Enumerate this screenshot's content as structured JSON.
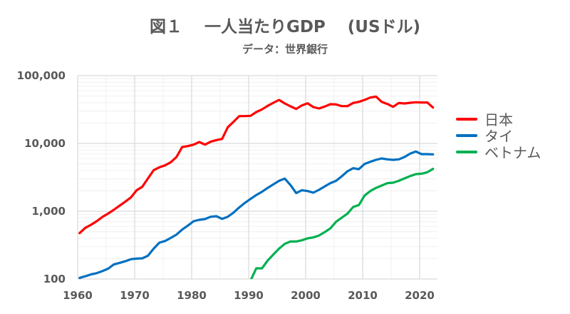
{
  "chart_data": {
    "type": "line",
    "title": "図１　 一人当たりGDP　 (USドル)",
    "subtitle": "データ：世界銀行",
    "xlabel": "",
    "ylabel": "",
    "y_scale": "log",
    "ylim": [
      100,
      100000
    ],
    "xlim": [
      1960,
      2022
    ],
    "grid": true,
    "legend_position": "right",
    "x_ticks": [
      1960,
      1970,
      1980,
      1990,
      2000,
      2010,
      2020
    ],
    "y_ticks": [
      {
        "v": 100,
        "label": "100"
      },
      {
        "v": 1000,
        "label": "1,000"
      },
      {
        "v": 10000,
        "label": "10,000"
      },
      {
        "v": 100000,
        "label": "100,000"
      }
    ],
    "series": [
      {
        "name": "日本",
        "color": "#ff0000",
        "start_year": 1960,
        "values": [
          475,
          568,
          631,
          712,
          824,
          923,
          1050,
          1204,
          1381,
          1598,
          2037,
          2296,
          3048,
          4043,
          4456,
          4754,
          5280,
          6310,
          8858,
          9145,
          9600,
          10490,
          9600,
          10590,
          11200,
          11660,
          17330,
          20860,
          25320,
          25320,
          25530,
          29060,
          31760,
          35840,
          39800,
          43850,
          38820,
          35240,
          32250,
          36420,
          39170,
          34440,
          32800,
          35000,
          37940,
          37580,
          35540,
          35540,
          39480,
          41080,
          43850,
          47530,
          49100,
          41080,
          38240,
          34670,
          39480,
          38820,
          39800,
          40460,
          40150,
          40150,
          33870
        ]
      },
      {
        "name": "タイ",
        "color": "#0070c0",
        "start_year": 1960,
        "values": [
          104,
          110,
          117,
          122,
          131,
          142,
          164,
          173,
          183,
          196,
          200,
          202,
          221,
          281,
          344,
          364,
          404,
          453,
          537,
          615,
          712,
          748,
          766,
          830,
          844,
          772,
          830,
          952,
          1138,
          1327,
          1521,
          1733,
          1940,
          2208,
          2491,
          2811,
          3025,
          2434,
          1849,
          2037,
          1988,
          1879,
          2070,
          2317,
          2596,
          2811,
          3281,
          3883,
          4315,
          4178,
          4989,
          5370,
          5728,
          6012,
          5821,
          5728,
          5821,
          6310,
          7065,
          7598,
          6957,
          6957,
          6897
        ]
      },
      {
        "name": "ベトナム",
        "color": "#00b050",
        "start_year": 1990,
        "values": [
          95,
          144,
          144,
          188,
          230,
          281,
          330,
          358,
          358,
          373,
          398,
          411,
          439,
          491,
          559,
          701,
          804,
          923,
          1157,
          1235,
          1704,
          1988,
          2208,
          2393,
          2596,
          2637,
          2811,
          3048,
          3306,
          3527,
          3581,
          3758,
          4217
        ]
      }
    ]
  }
}
